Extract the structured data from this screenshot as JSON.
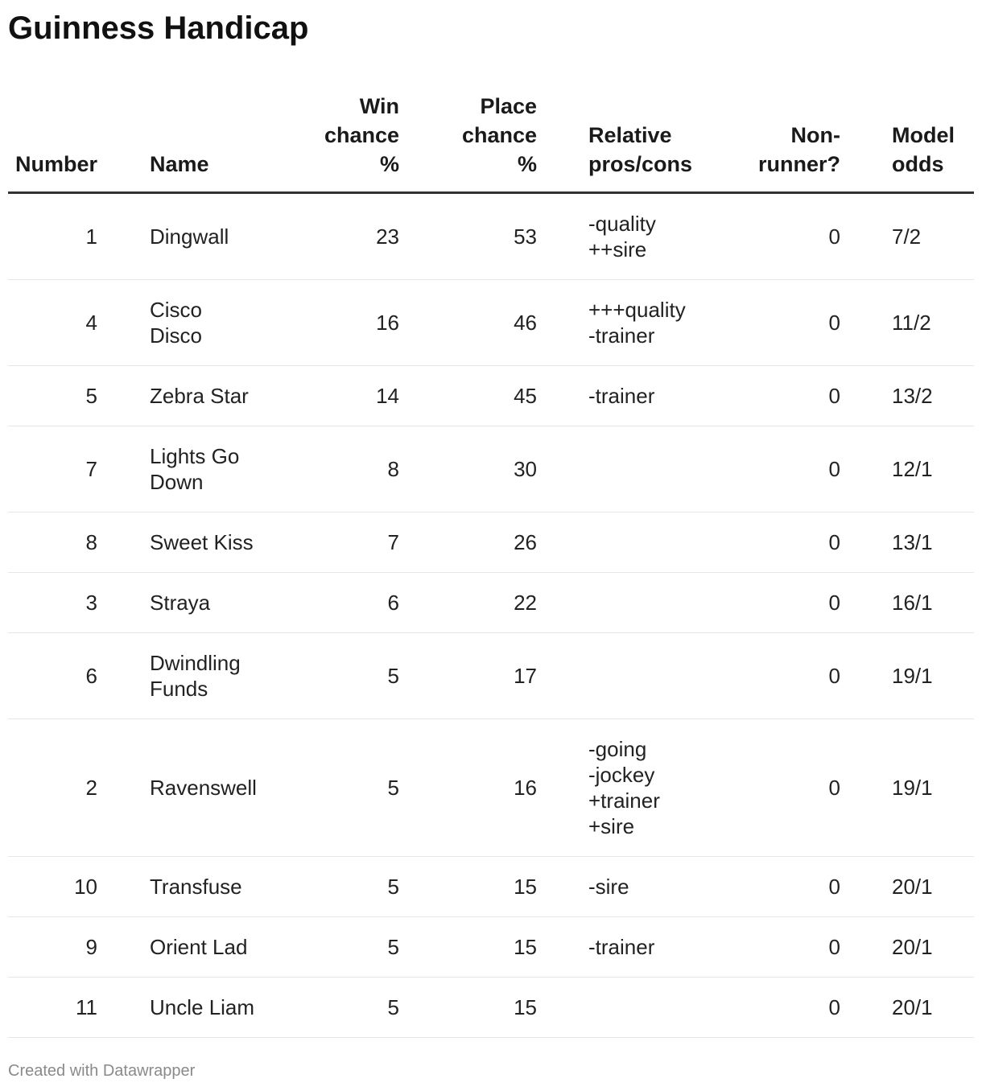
{
  "title": "Guinness Handicap",
  "footer": "Created with Datawrapper",
  "chart_data": {
    "type": "table",
    "columns": [
      "Number",
      "Name",
      "Win\nchance\n%",
      "Place\nchance\n%",
      "Relative\npros/cons",
      "Non-\nrunner?",
      "Model\nodds"
    ],
    "rows": [
      [
        "1",
        "Dingwall",
        "23",
        "53",
        "-quality\n++sire",
        "0",
        "7/2"
      ],
      [
        "4",
        "Cisco\nDisco",
        "16",
        "46",
        "+++quality\n-trainer",
        "0",
        "11/2"
      ],
      [
        "5",
        "Zebra Star",
        "14",
        "45",
        "-trainer",
        "0",
        "13/2"
      ],
      [
        "7",
        "Lights Go\nDown",
        "8",
        "30",
        "",
        "0",
        "12/1"
      ],
      [
        "8",
        "Sweet Kiss",
        "7",
        "26",
        "",
        "0",
        "13/1"
      ],
      [
        "3",
        "Straya",
        "6",
        "22",
        "",
        "0",
        "16/1"
      ],
      [
        "6",
        "Dwindling\nFunds",
        "5",
        "17",
        "",
        "0",
        "19/1"
      ],
      [
        "2",
        "Ravenswell",
        "5",
        "16",
        "-going\n-jockey\n+trainer\n+sire",
        "0",
        "19/1"
      ],
      [
        "10",
        "Transfuse",
        "5",
        "15",
        "-sire",
        "0",
        "20/1"
      ],
      [
        "9",
        "Orient Lad",
        "5",
        "15",
        "-trainer",
        "0",
        "20/1"
      ],
      [
        "11",
        "Uncle Liam",
        "5",
        "15",
        "",
        "0",
        "20/1"
      ]
    ]
  }
}
